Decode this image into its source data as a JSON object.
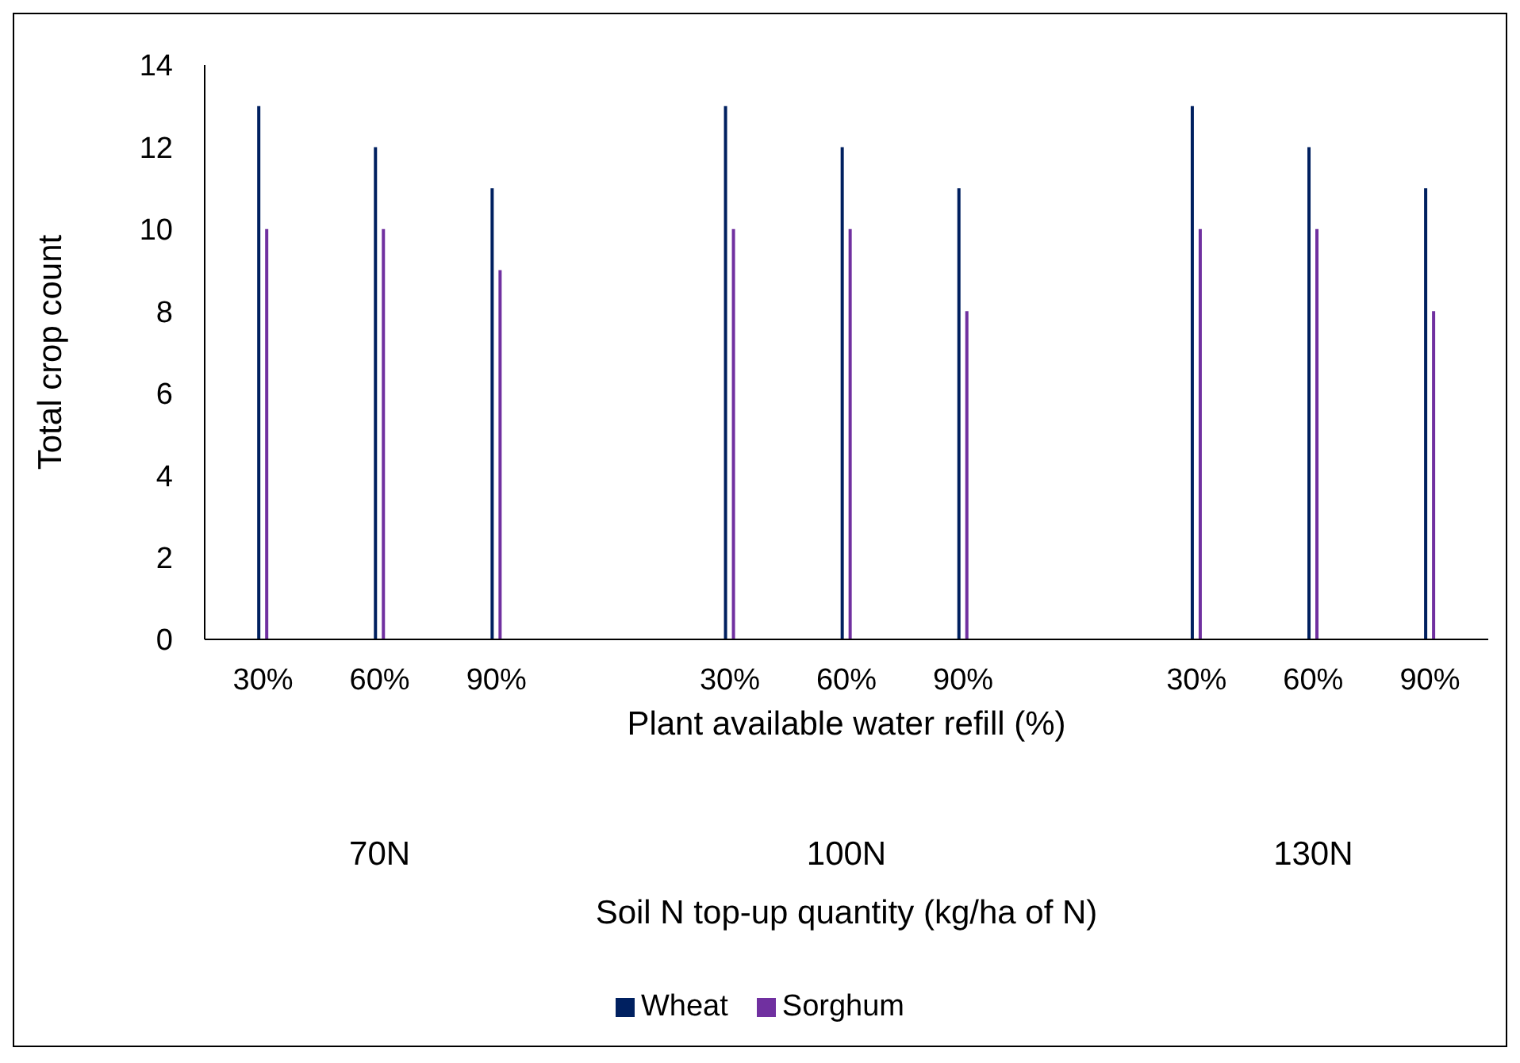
{
  "chart_data": {
    "type": "bar",
    "xlabel": "Plant available water refill (%)",
    "ylabel": "Total crop count",
    "categories": [
      "30%",
      "60%",
      "90%",
      null,
      "30%",
      "60%",
      "90%",
      null,
      "30%",
      "60%",
      "90%"
    ],
    "series": [
      {
        "name": "Wheat",
        "color": "#002060",
        "values": [
          13,
          12,
          11,
          null,
          13,
          12,
          11,
          null,
          13,
          12,
          11
        ]
      },
      {
        "name": "Sorghum",
        "color": "#7030a0",
        "values": [
          10,
          10,
          9,
          null,
          10,
          10,
          8,
          null,
          10,
          10,
          8
        ]
      }
    ],
    "ylim": [
      0,
      14
    ],
    "yticks": [
      0,
      2,
      4,
      6,
      8,
      10,
      12,
      14
    ],
    "legend": "bottom",
    "annotations": [
      "70N",
      "100N",
      "130N",
      "Soil N top-up quantity (kg/ha of N)"
    ]
  }
}
